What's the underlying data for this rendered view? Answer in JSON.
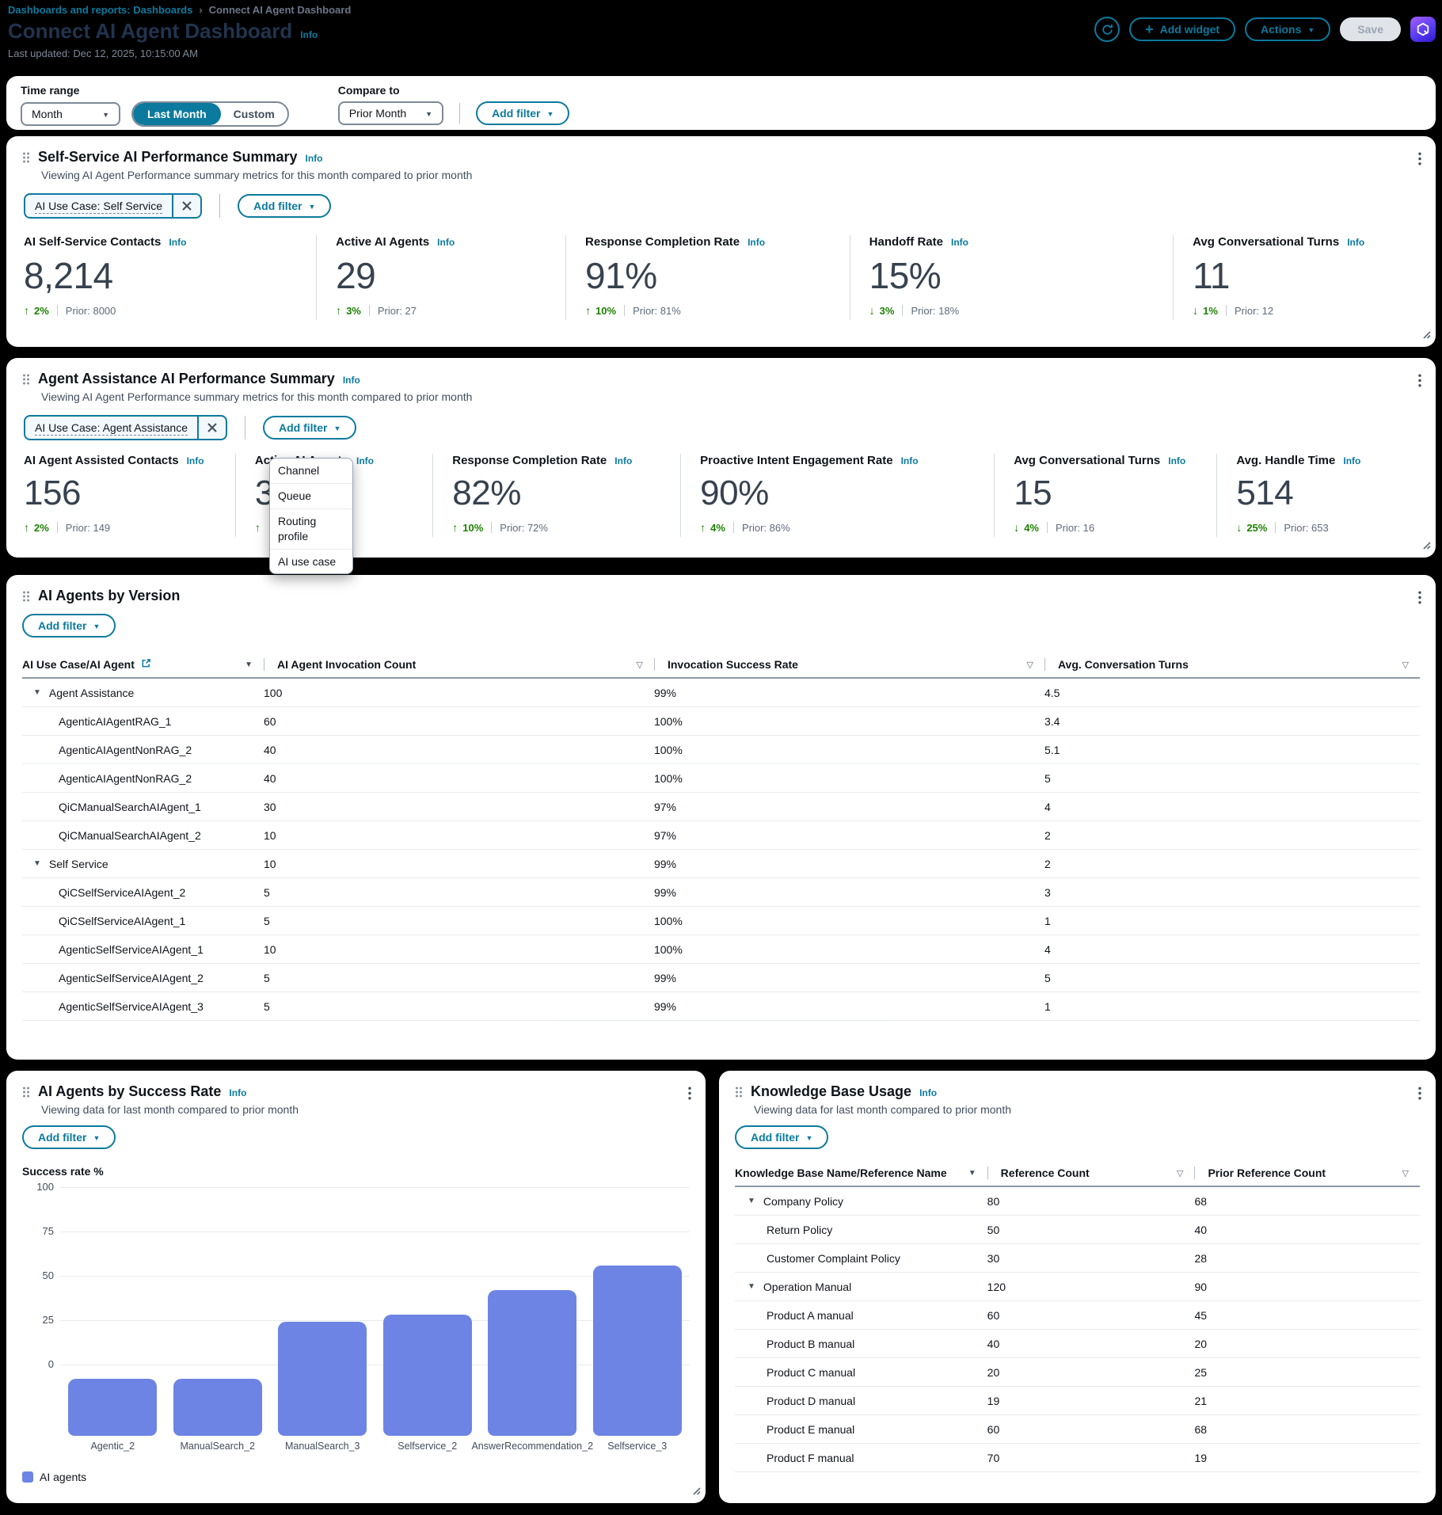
{
  "colors": {
    "accent": "#0b7a9e",
    "green": "#1d8102",
    "bar": "#6d84e4",
    "page_bg": "#000000",
    "card_bg": "#ffffff",
    "title_on_dark": "#21344e"
  },
  "header": {
    "breadcrumb_parent": "Dashboards and reports: Dashboards",
    "breadcrumb_current": "Connect AI Agent Dashboard",
    "title": "Connect AI Agent Dashboard",
    "title_info": "Info",
    "last_updated": "Last updated: Dec 12, 2025, 10:15:00 AM",
    "add_widget": "Add widget",
    "actions": "Actions",
    "save": "Save"
  },
  "filter_bar": {
    "time_range_label": "Time range",
    "time_range_value": "Month",
    "segments": [
      "Last Month",
      "Custom"
    ],
    "selected_segment": "Last Month",
    "compare_label": "Compare to",
    "compare_value": "Prior Month",
    "add_filter": "Add filter"
  },
  "self_service": {
    "title": "Self-Service AI Performance Summary",
    "info": "Info",
    "subtitle": "Viewing AI Agent Performance summary metrics for this month compared to prior month",
    "filter_token": "AI Use Case: Self Service",
    "add_filter": "Add filter",
    "metrics": [
      {
        "label": "AI Self-Service Contacts",
        "info": "Info",
        "value": "8,214",
        "dir": "up",
        "delta": "2%",
        "prior": "Prior: 8000"
      },
      {
        "label": "Active AI Agents",
        "info": "Info",
        "value": "29",
        "dir": "up",
        "delta": "3%",
        "prior": "Prior: 27"
      },
      {
        "label": "Response Completion Rate",
        "info": "Info",
        "value": "91%",
        "dir": "up",
        "delta": "10%",
        "prior": "Prior: 81%"
      },
      {
        "label": "Handoff Rate",
        "info": "Info",
        "value": "15%",
        "dir": "down",
        "delta": "3%",
        "prior": "Prior: 18%"
      },
      {
        "label": "Avg Conversational Turns",
        "info": "Info",
        "value": "11",
        "dir": "down",
        "delta": "1%",
        "prior": "Prior: 12"
      }
    ]
  },
  "agent_assistance": {
    "title": "Agent Assistance AI Performance Summary",
    "info": "Info",
    "subtitle": "Viewing AI Agent Performance summary metrics for this month compared to prior month",
    "filter_token": "AI Use Case: Agent Assistance",
    "add_filter": "Add filter",
    "menu_items": [
      "Channel",
      "Queue",
      "Routing profile",
      "AI use case"
    ],
    "metrics": [
      {
        "label": "AI Agent Assisted Contacts",
        "info": "Info",
        "value": "156",
        "dir": "up",
        "delta": "2%",
        "prior": "Prior: 149"
      },
      {
        "label": "Active AI Agents",
        "info": "Info",
        "value": "3",
        "dir": "up",
        "delta": "",
        "prior": ""
      },
      {
        "label": "Response Completion Rate",
        "info": "Info",
        "value": "82%",
        "dir": "up",
        "delta": "10%",
        "prior": "Prior: 72%"
      },
      {
        "label": "Proactive Intent Engagement Rate",
        "info": "Info",
        "value": "90%",
        "dir": "up",
        "delta": "4%",
        "prior": "Prior: 86%"
      },
      {
        "label": "Avg Conversational Turns",
        "info": "Info",
        "value": "15",
        "dir": "down",
        "delta": "4%",
        "prior": "Prior: 16"
      },
      {
        "label": "Avg. Handle Time",
        "info": "Info",
        "value": "514",
        "dir": "down",
        "delta": "25%",
        "prior": "Prior: 653"
      }
    ]
  },
  "agents_by_version": {
    "title": "AI Agents by Version",
    "add_filter": "Add filter",
    "columns": [
      "AI Use Case/AI Agent",
      "AI Agent Invocation Count",
      "Invocation Success Rate",
      "Avg. Conversation Turns"
    ],
    "rows": [
      {
        "name": "Agent Assistance",
        "group": true,
        "count": "100",
        "success": "99%",
        "turns": "4.5"
      },
      {
        "name": "AgenticAIAgentRAG_1",
        "group": false,
        "count": "60",
        "success": "100%",
        "turns": "3.4"
      },
      {
        "name": "AgenticAIAgentNonRAG_2",
        "group": false,
        "count": "40",
        "success": "100%",
        "turns": "5.1"
      },
      {
        "name": "AgenticAIAgentNonRAG_2",
        "group": false,
        "count": "40",
        "success": "100%",
        "turns": "5"
      },
      {
        "name": "QiCManualSearchAIAgent_1",
        "group": false,
        "count": "30",
        "success": "97%",
        "turns": "4"
      },
      {
        "name": "QiCManualSearchAIAgent_2",
        "group": false,
        "count": "10",
        "success": "97%",
        "turns": "2"
      },
      {
        "name": "Self Service",
        "group": true,
        "count": "10",
        "success": "99%",
        "turns": "2"
      },
      {
        "name": "QiCSelfServiceAIAgent_2",
        "group": false,
        "count": "5",
        "success": "99%",
        "turns": "3"
      },
      {
        "name": "QiCSelfServiceAIAgent_1",
        "group": false,
        "count": "5",
        "success": "100%",
        "turns": "1"
      },
      {
        "name": "AgenticSelfServiceAIAgent_1",
        "group": false,
        "count": "10",
        "success": "100%",
        "turns": "4"
      },
      {
        "name": "AgenticSelfServiceAIAgent_2",
        "group": false,
        "count": "5",
        "success": "99%",
        "turns": "5"
      },
      {
        "name": "AgenticSelfServiceAIAgent_3",
        "group": false,
        "count": "5",
        "success": "99%",
        "turns": "1"
      }
    ]
  },
  "success_rate_card": {
    "title": "AI Agents by Success Rate",
    "info": "Info",
    "subtitle": "Viewing data for last month compared to prior month",
    "add_filter": "Add filter"
  },
  "kb_usage": {
    "title": "Knowledge Base Usage",
    "info": "Info",
    "subtitle": "Viewing data for last  month compared to prior month",
    "add_filter": "Add filter",
    "columns": [
      "Knowledge Base Name/Reference Name",
      "Reference Count",
      "Prior Reference Count"
    ],
    "rows": [
      {
        "name": "Company Policy",
        "group": true,
        "count": "80",
        "prior": "68"
      },
      {
        "name": "Return Policy",
        "group": false,
        "count": "50",
        "prior": "40"
      },
      {
        "name": "Customer Complaint Policy",
        "group": false,
        "count": "30",
        "prior": "28"
      },
      {
        "name": "Operation Manual",
        "group": true,
        "count": "120",
        "prior": "90"
      },
      {
        "name": "Product A manual",
        "group": false,
        "count": "60",
        "prior": "45"
      },
      {
        "name": "Product B manual",
        "group": false,
        "count": "40",
        "prior": "20"
      },
      {
        "name": "Product C manual",
        "group": false,
        "count": "20",
        "prior": "25"
      },
      {
        "name": "Product D manual",
        "group": false,
        "count": "19",
        "prior": "21"
      },
      {
        "name": "Product E manual",
        "group": false,
        "count": "60",
        "prior": "68"
      },
      {
        "name": "Product F manual",
        "group": false,
        "count": "70",
        "prior": "19"
      }
    ]
  },
  "chart_data": {
    "type": "bar",
    "title": "AI Agents by Success Rate",
    "ylabel": "Success rate %",
    "categories": [
      "Agentic_2",
      "ManualSearch_2",
      "ManualSearch_3",
      "Selfservice_2",
      "AnswerRecommendation_2",
      "Selfservice_3"
    ],
    "values": [
      -8,
      -8,
      24,
      28,
      42,
      56
    ],
    "yticks": [
      100,
      75,
      50,
      25,
      0
    ],
    "ylim": [
      -40,
      100
    ],
    "grid": true,
    "bar_color": "#6d84e4",
    "legend": [
      {
        "label": "AI agents",
        "color": "#6d84e4"
      }
    ],
    "legend_position": "bottom-left"
  }
}
